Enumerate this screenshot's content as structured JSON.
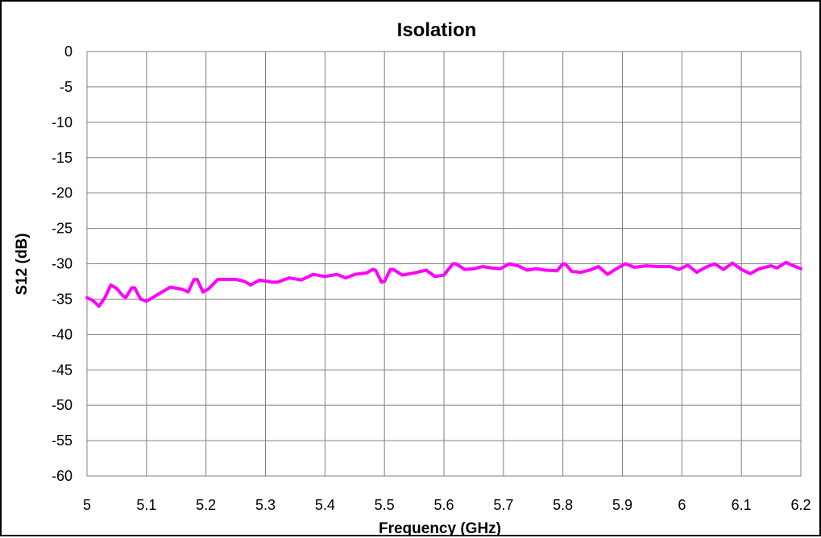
{
  "chart_data": {
    "type": "line",
    "title": "Isolation",
    "xlabel": "Frequency (GHz)",
    "ylabel": "S12 (dB)",
    "xlim": [
      5,
      6.2
    ],
    "ylim": [
      -60,
      0
    ],
    "x_ticks": [
      "5",
      "5.1",
      "5.2",
      "5.3",
      "5.4",
      "5.5",
      "5.6",
      "5.7",
      "5.8",
      "5.9",
      "6",
      "6.1",
      "6.2"
    ],
    "y_ticks": [
      "0",
      "-5",
      "-10",
      "-15",
      "-20",
      "-25",
      "-30",
      "-35",
      "-40",
      "-45",
      "-50",
      "-55",
      "-60"
    ],
    "grid": true,
    "legend": "none",
    "series": [
      {
        "color": "#ff00ff",
        "points": [
          [
            5.0,
            -34.8
          ],
          [
            5.01,
            -35.2
          ],
          [
            5.02,
            -36.0
          ],
          [
            5.03,
            -34.8
          ],
          [
            5.04,
            -33.0
          ],
          [
            5.05,
            -33.5
          ],
          [
            5.06,
            -34.5
          ],
          [
            5.065,
            -34.8
          ],
          [
            5.075,
            -33.4
          ],
          [
            5.08,
            -33.4
          ],
          [
            5.09,
            -35.0
          ],
          [
            5.1,
            -35.3
          ],
          [
            5.12,
            -34.3
          ],
          [
            5.14,
            -33.3
          ],
          [
            5.16,
            -33.6
          ],
          [
            5.17,
            -34.0
          ],
          [
            5.18,
            -32.2
          ],
          [
            5.185,
            -32.2
          ],
          [
            5.195,
            -34.0
          ],
          [
            5.205,
            -33.5
          ],
          [
            5.22,
            -32.2
          ],
          [
            5.25,
            -32.2
          ],
          [
            5.265,
            -32.5
          ],
          [
            5.275,
            -33.0
          ],
          [
            5.29,
            -32.3
          ],
          [
            5.31,
            -32.6
          ],
          [
            5.32,
            -32.6
          ],
          [
            5.34,
            -32.0
          ],
          [
            5.36,
            -32.3
          ],
          [
            5.38,
            -31.5
          ],
          [
            5.4,
            -31.8
          ],
          [
            5.42,
            -31.5
          ],
          [
            5.435,
            -32.0
          ],
          [
            5.45,
            -31.5
          ],
          [
            5.47,
            -31.3
          ],
          [
            5.48,
            -30.8
          ],
          [
            5.485,
            -30.9
          ],
          [
            5.495,
            -32.6
          ],
          [
            5.5,
            -32.5
          ],
          [
            5.51,
            -30.8
          ],
          [
            5.515,
            -30.8
          ],
          [
            5.53,
            -31.6
          ],
          [
            5.55,
            -31.3
          ],
          [
            5.57,
            -30.9
          ],
          [
            5.585,
            -31.8
          ],
          [
            5.6,
            -31.6
          ],
          [
            5.615,
            -30.0
          ],
          [
            5.62,
            -30.0
          ],
          [
            5.635,
            -30.8
          ],
          [
            5.65,
            -30.7
          ],
          [
            5.665,
            -30.4
          ],
          [
            5.68,
            -30.6
          ],
          [
            5.695,
            -30.7
          ],
          [
            5.71,
            -30.0
          ],
          [
            5.725,
            -30.3
          ],
          [
            5.74,
            -30.9
          ],
          [
            5.755,
            -30.7
          ],
          [
            5.77,
            -30.9
          ],
          [
            5.79,
            -31.0
          ],
          [
            5.8,
            -30.0
          ],
          [
            5.805,
            -30.1
          ],
          [
            5.815,
            -31.1
          ],
          [
            5.83,
            -31.2
          ],
          [
            5.845,
            -30.9
          ],
          [
            5.86,
            -30.4
          ],
          [
            5.875,
            -31.5
          ],
          [
            5.89,
            -30.7
          ],
          [
            5.905,
            -30.0
          ],
          [
            5.92,
            -30.5
          ],
          [
            5.94,
            -30.3
          ],
          [
            5.96,
            -30.4
          ],
          [
            5.98,
            -30.4
          ],
          [
            5.995,
            -30.8
          ],
          [
            6.01,
            -30.2
          ],
          [
            6.025,
            -31.2
          ],
          [
            6.04,
            -30.5
          ],
          [
            6.055,
            -30.0
          ],
          [
            6.07,
            -30.8
          ],
          [
            6.085,
            -29.9
          ],
          [
            6.1,
            -30.8
          ],
          [
            6.115,
            -31.4
          ],
          [
            6.13,
            -30.7
          ],
          [
            6.15,
            -30.3
          ],
          [
            6.16,
            -30.6
          ],
          [
            6.175,
            -29.8
          ],
          [
            6.185,
            -30.2
          ],
          [
            6.2,
            -30.7
          ]
        ]
      }
    ]
  }
}
